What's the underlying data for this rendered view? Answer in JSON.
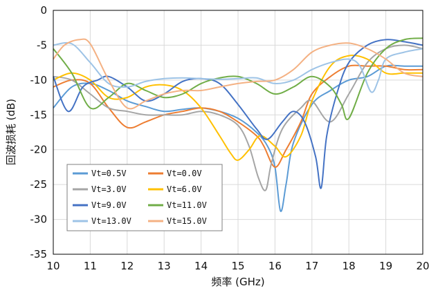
{
  "chart_data": {
    "type": "line",
    "title": "",
    "xlabel": "频率 (GHz)",
    "ylabel": "回波损耗 (dB)",
    "xlim": [
      10,
      20
    ],
    "ylim": [
      -35,
      0
    ],
    "xticks": [
      10,
      11,
      12,
      13,
      14,
      15,
      16,
      17,
      18,
      19,
      20
    ],
    "yticks": [
      0,
      -5,
      -10,
      -15,
      -20,
      -25,
      -30,
      -35
    ],
    "grid": true,
    "legend_position": "bottom-left",
    "legend_columns": 2,
    "series": [
      {
        "name": "Vt=0.5V",
        "color": "#5b9bd5",
        "x": [
          10,
          10.5,
          11,
          11.5,
          12,
          12.5,
          13,
          13.5,
          14,
          14.5,
          15,
          15.5,
          15.8,
          16,
          16.15,
          16.3,
          16.5,
          17,
          17.5,
          18,
          18.5,
          19,
          19.5,
          20
        ],
        "y": [
          -14,
          -11,
          -10.5,
          -11.5,
          -13,
          -13.8,
          -14.5,
          -14.2,
          -14,
          -14.5,
          -15.5,
          -17.5,
          -19.5,
          -22.5,
          -28.8,
          -25,
          -19,
          -13.5,
          -11.5,
          -10,
          -9.5,
          -8,
          -8,
          -8
        ]
      },
      {
        "name": "Vt=0.0V",
        "color": "#ed7d31",
        "x": [
          10,
          10.5,
          11,
          11.5,
          12,
          12.5,
          13,
          13.5,
          14,
          14.5,
          15,
          15.5,
          15.7,
          16,
          16.3,
          16.7,
          17,
          17.5,
          18,
          18.5,
          19,
          19.5,
          20
        ],
        "y": [
          -11,
          -10,
          -10.5,
          -14,
          -16.8,
          -16,
          -15,
          -14.5,
          -14,
          -14.5,
          -16,
          -18,
          -19.5,
          -22.5,
          -20,
          -16,
          -12,
          -9.5,
          -8,
          -8,
          -8,
          -8.5,
          -8.5
        ]
      },
      {
        "name": "Vt=3.0V",
        "color": "#a5a5a5",
        "x": [
          10,
          10.5,
          11,
          11.5,
          12,
          12.5,
          13,
          13.5,
          14,
          14.5,
          15,
          15.3,
          15.55,
          15.75,
          15.9,
          16.2,
          16.7,
          17,
          17.5,
          18,
          18.5,
          19,
          19.5,
          20
        ],
        "y": [
          -9.5,
          -10,
          -12,
          -14,
          -14.5,
          -15,
          -15,
          -15,
          -14.5,
          -15,
          -16.5,
          -19.5,
          -24,
          -25.8,
          -22,
          -17,
          -14,
          -13,
          -16,
          -12,
          -7.5,
          -5.5,
          -5,
          -5.5
        ]
      },
      {
        "name": "Vt=6.0V",
        "color": "#ffc000",
        "x": [
          10,
          10.5,
          11,
          11.5,
          12,
          12.5,
          13,
          13.5,
          14,
          14.5,
          14.8,
          15,
          15.3,
          15.6,
          16,
          16.3,
          16.7,
          17,
          17.5,
          18,
          18.5,
          19,
          19.5,
          20
        ],
        "y": [
          -10,
          -9,
          -10,
          -12.5,
          -12.5,
          -11,
          -10.7,
          -11.5,
          -14,
          -18,
          -20.5,
          -21.5,
          -20,
          -18,
          -19.5,
          -21,
          -18,
          -13,
          -8,
          -6.5,
          -7,
          -9,
          -9,
          -9
        ]
      },
      {
        "name": "Vt=9.0V",
        "color": "#4472c4",
        "x": [
          10,
          10.4,
          10.8,
          11.2,
          11.5,
          12,
          12.5,
          13,
          13.5,
          14,
          14.5,
          15,
          15.5,
          15.8,
          16.2,
          16.5,
          16.8,
          17.1,
          17.25,
          17.4,
          17.7,
          18,
          18.5,
          19,
          19.5,
          20
        ],
        "y": [
          -9.5,
          -14.5,
          -11,
          -10,
          -9.5,
          -11,
          -13,
          -12,
          -10.2,
          -9.8,
          -10.5,
          -13.5,
          -17,
          -18.5,
          -16,
          -14.5,
          -16,
          -21,
          -25.5,
          -18,
          -11.5,
          -7.5,
          -5,
          -4.2,
          -4.5,
          -5
        ]
      },
      {
        "name": "Vt=11.0V",
        "color": "#70ad47",
        "x": [
          10,
          10.5,
          11,
          11.5,
          12,
          12.5,
          13,
          13.5,
          14,
          14.5,
          15,
          15.5,
          16,
          16.5,
          17,
          17.5,
          17.8,
          18,
          18.5,
          19,
          19.5,
          20
        ],
        "y": [
          -5.5,
          -9,
          -14,
          -12.5,
          -10.5,
          -11.5,
          -12.5,
          -12,
          -10.5,
          -9.7,
          -9.5,
          -10.5,
          -12,
          -11,
          -9.5,
          -11,
          -13.5,
          -15.5,
          -9,
          -5.5,
          -4.2,
          -4
        ]
      },
      {
        "name": "Vt=13.0V",
        "color": "#9dc3e6",
        "x": [
          10,
          10.5,
          11,
          11.5,
          12,
          12.5,
          13,
          13.5,
          14,
          14.5,
          15,
          15.5,
          16,
          16.5,
          17,
          17.5,
          18,
          18.3,
          18.6,
          18.8,
          19,
          19.5,
          20
        ],
        "y": [
          -5,
          -4.8,
          -7.5,
          -10.5,
          -11,
          -10.2,
          -9.8,
          -9.7,
          -9.8,
          -9.9,
          -9.8,
          -9.7,
          -10.5,
          -10,
          -8.5,
          -7.5,
          -7,
          -8,
          -11.7,
          -10,
          -7,
          -6,
          -5.5
        ]
      },
      {
        "name": "Vt=15.0V",
        "color": "#f4b183",
        "x": [
          10,
          10.3,
          10.7,
          11,
          11.5,
          12,
          12.5,
          13,
          13.5,
          14,
          14.5,
          15,
          15.5,
          16,
          16.5,
          17,
          17.5,
          18,
          18.5,
          19,
          19.5,
          20
        ],
        "y": [
          -7,
          -5,
          -4.2,
          -4.8,
          -10,
          -14,
          -13,
          -12,
          -11.5,
          -11.5,
          -11,
          -10.5,
          -10.2,
          -10,
          -8.5,
          -6,
          -5,
          -4.7,
          -5.5,
          -7,
          -9,
          -9.5
        ]
      }
    ]
  }
}
